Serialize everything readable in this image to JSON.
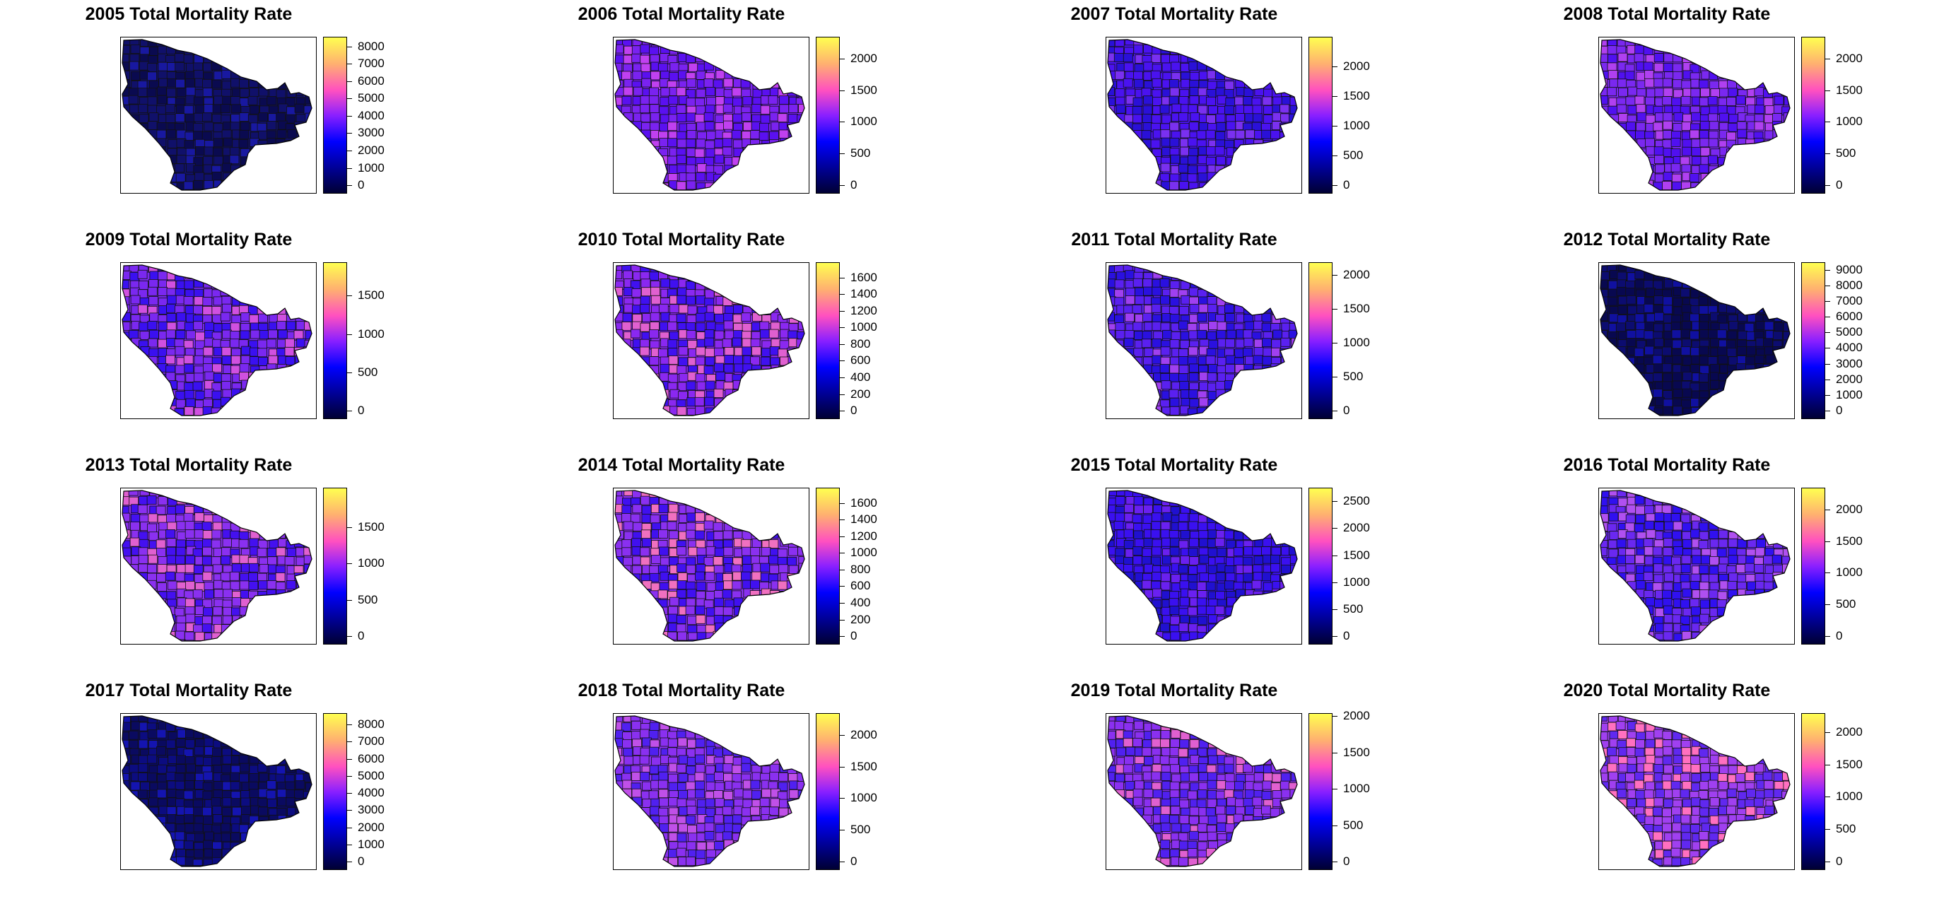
{
  "figure": {
    "panels": [
      {
        "title": "2005 Total Mortality Rate",
        "scale_max": 8400,
        "ticks": [
          "0",
          "1000",
          "2000",
          "3000",
          "4000",
          "5000",
          "6000",
          "7000",
          "8000"
        ],
        "tick_values": [
          0,
          1000,
          2000,
          3000,
          4000,
          5000,
          6000,
          7000,
          8000
        ]
      },
      {
        "title": "2006 Total Mortality Rate",
        "scale_max": 2300,
        "ticks": [
          "0",
          "500",
          "1000",
          "1500",
          "2000"
        ],
        "tick_values": [
          0,
          500,
          1000,
          1500,
          2000
        ]
      },
      {
        "title": "2007 Total Mortality Rate",
        "scale_max": 2450,
        "ticks": [
          "0",
          "500",
          "1000",
          "1500",
          "2000"
        ],
        "tick_values": [
          0,
          500,
          1000,
          1500,
          2000
        ]
      },
      {
        "title": "2008 Total Mortality Rate",
        "scale_max": 2300,
        "ticks": [
          "0",
          "500",
          "1000",
          "1500",
          "2000"
        ],
        "tick_values": [
          0,
          500,
          1000,
          1500,
          2000
        ]
      },
      {
        "title": "2009 Total Mortality Rate",
        "scale_max": 1900,
        "ticks": [
          "0",
          "500",
          "1000",
          "1500"
        ],
        "tick_values": [
          0,
          500,
          1000,
          1500
        ]
      },
      {
        "title": "2010 Total Mortality Rate",
        "scale_max": 1750,
        "ticks": [
          "0",
          "200",
          "400",
          "600",
          "800",
          "1000",
          "1200",
          "1400",
          "1600"
        ],
        "tick_values": [
          0,
          200,
          400,
          600,
          800,
          1000,
          1200,
          1400,
          1600
        ]
      },
      {
        "title": "2011 Total Mortality Rate",
        "scale_max": 2150,
        "ticks": [
          "0",
          "500",
          "1000",
          "1500",
          "2000"
        ],
        "tick_values": [
          0,
          500,
          1000,
          1500,
          2000
        ]
      },
      {
        "title": "2012 Total Mortality Rate",
        "scale_max": 9300,
        "ticks": [
          "0",
          "1000",
          "2000",
          "3000",
          "4000",
          "5000",
          "6000",
          "7000",
          "8000",
          "9000"
        ],
        "tick_values": [
          0,
          1000,
          2000,
          3000,
          4000,
          5000,
          6000,
          7000,
          8000,
          9000
        ]
      },
      {
        "title": "2013 Total Mortality Rate",
        "scale_max": 2000,
        "ticks": [
          "0",
          "500",
          "1000",
          "1500"
        ],
        "tick_values": [
          0,
          500,
          1000,
          1500
        ]
      },
      {
        "title": "2014 Total Mortality Rate",
        "scale_max": 1750,
        "ticks": [
          "0",
          "200",
          "400",
          "600",
          "800",
          "1000",
          "1200",
          "1400",
          "1600"
        ],
        "tick_values": [
          0,
          200,
          400,
          600,
          800,
          1000,
          1200,
          1400,
          1600
        ]
      },
      {
        "title": "2015 Total Mortality Rate",
        "scale_max": 2700,
        "ticks": [
          "0",
          "500",
          "1000",
          "1500",
          "2000",
          "2500"
        ],
        "tick_values": [
          0,
          500,
          1000,
          1500,
          2000,
          2500
        ]
      },
      {
        "title": "2016 Total Mortality Rate",
        "scale_max": 2300,
        "ticks": [
          "0",
          "500",
          "1000",
          "1500",
          "2000"
        ],
        "tick_values": [
          0,
          500,
          1000,
          1500,
          2000
        ]
      },
      {
        "title": "2017 Total Mortality Rate",
        "scale_max": 8500,
        "ticks": [
          "0",
          "1000",
          "2000",
          "3000",
          "4000",
          "5000",
          "6000",
          "7000",
          "8000"
        ],
        "tick_values": [
          0,
          1000,
          2000,
          3000,
          4000,
          5000,
          6000,
          7000,
          8000
        ]
      },
      {
        "title": "2018 Total Mortality Rate",
        "scale_max": 2300,
        "ticks": [
          "0",
          "500",
          "1000",
          "1500",
          "2000"
        ],
        "tick_values": [
          0,
          500,
          1000,
          1500,
          2000
        ]
      },
      {
        "title": "2019 Total Mortality Rate",
        "scale_max": 2000,
        "ticks": [
          "0",
          "500",
          "1000",
          "1500",
          "2000"
        ],
        "tick_values": [
          0,
          500,
          1000,
          1500,
          2000
        ]
      },
      {
        "title": "2020 Total Mortality Rate",
        "scale_max": 2250,
        "ticks": [
          "0",
          "500",
          "1000",
          "1500",
          "2000"
        ],
        "tick_values": [
          0,
          500,
          1000,
          1500,
          2000
        ]
      }
    ],
    "colors": {
      "scale": [
        "#000033",
        "#0000ff",
        "#8b20ff",
        "#ff50c0",
        "#ffb070",
        "#ffff50"
      ],
      "fills": {
        "2005": [
          "#10106a",
          "#0a0a50",
          "#1818a0"
        ],
        "2006": [
          "#7a22f0",
          "#5a10f0",
          "#c040f0"
        ],
        "2007": [
          "#4a12f0",
          "#2a10d8",
          "#7a30f0"
        ],
        "2008": [
          "#7a28f0",
          "#5010f0",
          "#b040f0"
        ],
        "2009": [
          "#7a28f0",
          "#3a10f0",
          "#d050e0"
        ],
        "2010": [
          "#8a28f0",
          "#4010f0",
          "#e060d0"
        ],
        "2011": [
          "#5a20f0",
          "#2a10e0",
          "#a040f0"
        ],
        "2012": [
          "#080850",
          "#0c0c70",
          "#1010a0"
        ],
        "2013": [
          "#8a30f0",
          "#4410f0",
          "#e060d0"
        ],
        "2014": [
          "#8a30f0",
          "#4010f0",
          "#f070c0"
        ],
        "2015": [
          "#3a10f0",
          "#2010d0",
          "#6a20f0"
        ],
        "2016": [
          "#6a28f0",
          "#3010f0",
          "#b050f0"
        ],
        "2017": [
          "#0a0a60",
          "#0c0c80",
          "#1414b0"
        ],
        "2018": [
          "#8a30f0",
          "#5020f0",
          "#c050e8"
        ],
        "2019": [
          "#8a30f0",
          "#5020f0",
          "#e060d0"
        ],
        "2020": [
          "#a040f0",
          "#6028f0",
          "#ff70c0"
        ]
      }
    }
  }
}
